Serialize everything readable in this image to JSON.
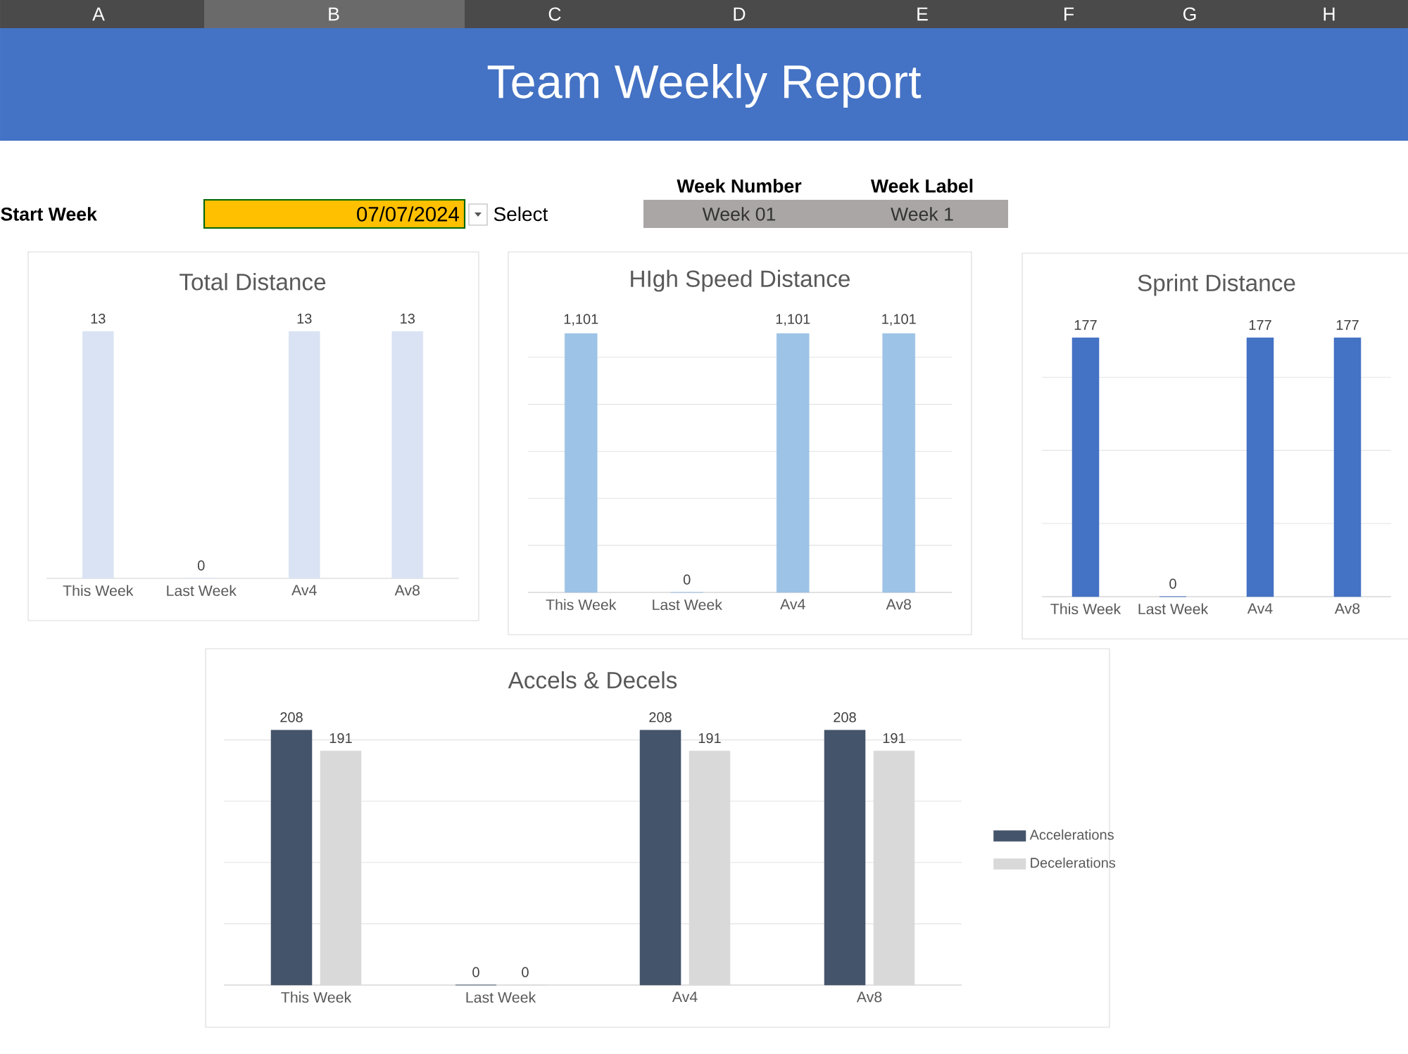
{
  "chart_data": [
    {
      "type": "other",
      "title": "Team Weekly Report",
      "annotations": [
        "A",
        "B",
        "C",
        "D",
        "E",
        "F",
        "G",
        "H",
        "Start Week",
        "07/07/2024",
        "Select",
        "Week Number",
        "Week Label",
        "Week 01",
        "Week 1"
      ]
    },
    {
      "type": "bar",
      "title": "Total Distance",
      "categories": [
        "This Week",
        "Last Week",
        "Av4",
        "Av8"
      ],
      "values": [
        13,
        0,
        13,
        13
      ],
      "value_labels": [
        "13",
        "0",
        "13",
        "13"
      ],
      "color": "#dae3f3",
      "tick_labels": "x"
    },
    {
      "type": "bar",
      "title": "HIgh Speed Distance",
      "categories": [
        "This Week",
        "Last Week",
        "Av4",
        "Av8"
      ],
      "values": [
        1101,
        0,
        1101,
        1101
      ],
      "value_labels": [
        "1,101",
        "0",
        "1,101",
        "1,101"
      ],
      "color": "#9dc3e6",
      "grid": "y",
      "tick_labels": "x"
    },
    {
      "type": "bar",
      "title": "Sprint Distance",
      "categories": [
        "This Week",
        "Last Week",
        "Av4",
        "Av8"
      ],
      "values": [
        177,
        0,
        177,
        177
      ],
      "value_labels": [
        "177",
        "0",
        "177",
        "177"
      ],
      "color": "#4472c4",
      "grid": "y",
      "tick_labels": "x"
    },
    {
      "type": "bar",
      "title": "Accels & Decels",
      "categories": [
        "This Week",
        "Last Week",
        "Av4",
        "Av8"
      ],
      "series": [
        {
          "name": "Accelerations",
          "color": "#44546a",
          "values": [
            208,
            0,
            208,
            208
          ],
          "value_labels": [
            "208",
            "0",
            "208",
            "208"
          ]
        },
        {
          "name": "Decelerations",
          "color": "#d9d9d9",
          "values": [
            191,
            0,
            191,
            191
          ],
          "value_labels": [
            "191",
            "0",
            "191",
            "191"
          ]
        }
      ],
      "grid": "y",
      "tick_labels": "x",
      "legend": "right"
    }
  ]
}
